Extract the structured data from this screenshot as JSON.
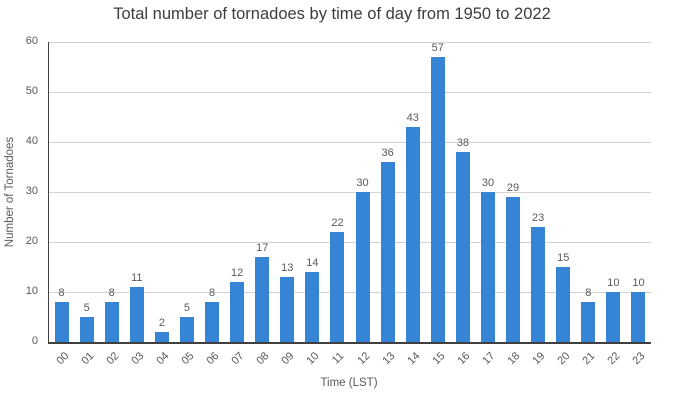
{
  "chart_data": {
    "type": "bar",
    "title": "Total number of tornadoes by time of day from 1950 to 2022",
    "xlabel": "Time (LST)",
    "ylabel": "Number of Tornadoes",
    "categories": [
      "00",
      "01",
      "02",
      "03",
      "04",
      "05",
      "06",
      "07",
      "08",
      "09",
      "10",
      "11",
      "12",
      "13",
      "14",
      "15",
      "16",
      "17",
      "18",
      "19",
      "20",
      "21",
      "22",
      "23"
    ],
    "values": [
      8,
      5,
      8,
      11,
      2,
      5,
      8,
      12,
      17,
      13,
      14,
      22,
      30,
      36,
      43,
      57,
      38,
      30,
      29,
      23,
      15,
      8,
      10,
      10
    ],
    "ylim": [
      0,
      60
    ],
    "yticks": [
      0,
      10,
      20,
      30,
      40,
      50,
      60
    ],
    "grid": true,
    "legend": "none",
    "data_labels": true,
    "colors": {
      "bar": "#3584d6",
      "title_text": "#3d3d3d",
      "axis_line": "#404040",
      "gridline": "#d3d3d3",
      "tick_text": "#595959"
    }
  }
}
